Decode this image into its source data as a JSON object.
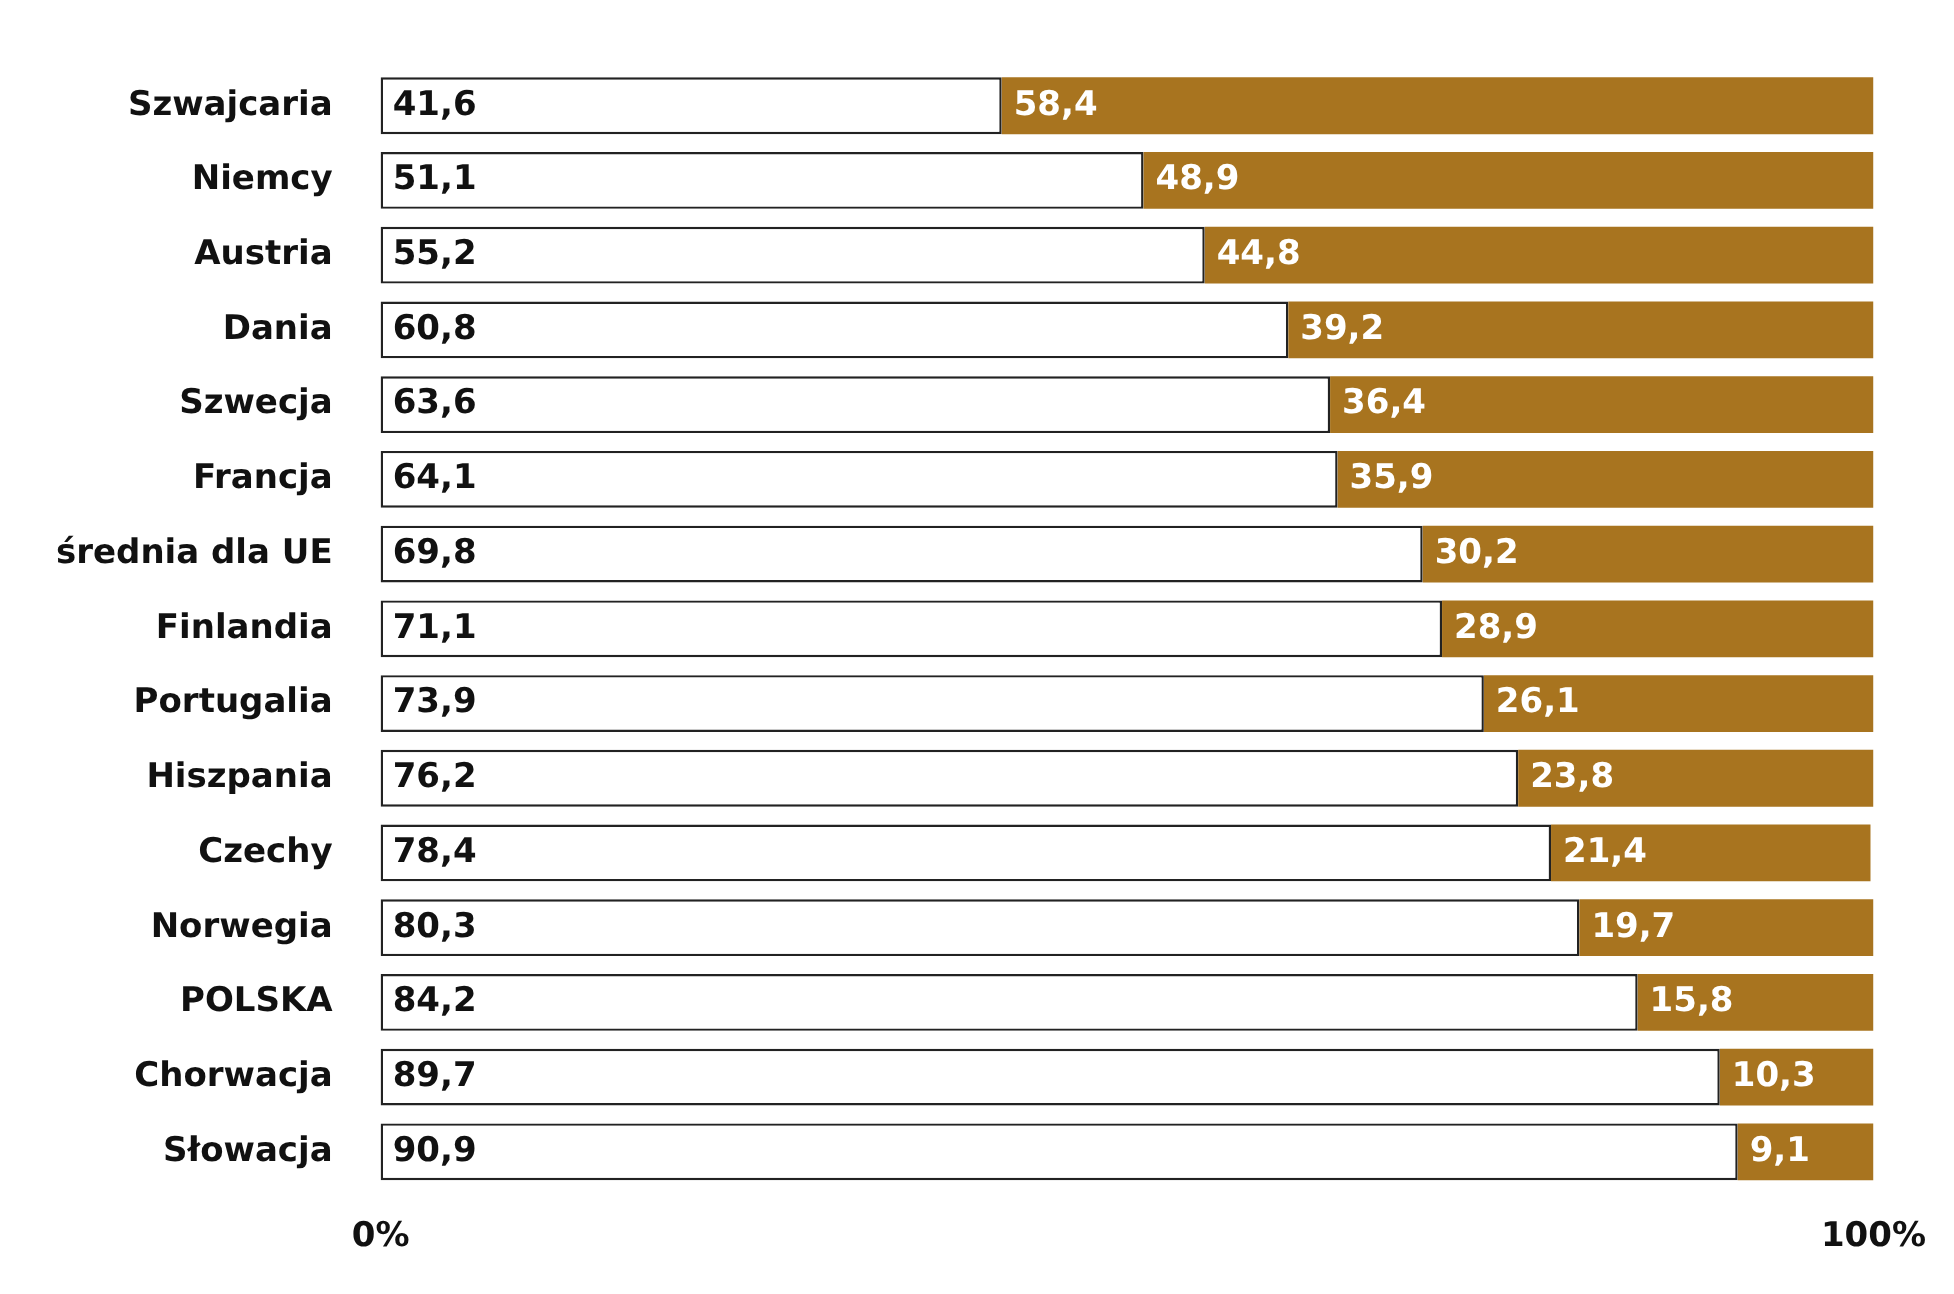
{
  "chart_data": {
    "type": "bar",
    "orientation": "horizontal",
    "stacked": true,
    "legend": false,
    "grid": false,
    "categories": [
      "Szwajcaria",
      "Niemcy",
      "Austria",
      "Dania",
      "Szwecja",
      "Francja",
      "średnia dla UE",
      "Finlandia",
      "Portugalia",
      "Hiszpania",
      "Czechy",
      "Norwegia",
      "POLSKA",
      "Chorwacja",
      "Słowacja"
    ],
    "xlim": [
      0,
      100
    ],
    "xticks": [
      {
        "value": 0,
        "label": "0%"
      },
      {
        "value": 100,
        "label": "100%"
      }
    ],
    "series": [
      {
        "color": "#ffffff",
        "values": [
          41.6,
          51.1,
          55.2,
          60.8,
          63.6,
          64.1,
          69.8,
          71.1,
          73.9,
          76.2,
          78.4,
          80.3,
          84.2,
          89.7,
          90.9
        ],
        "value_labels": [
          "41,6",
          "51,1",
          "55,2",
          "60,8",
          "63,6",
          "64,1",
          "69,8",
          "71,1",
          "73,9",
          "76,2",
          "78,4",
          "80,3",
          "84,2",
          "89,7",
          "90,9"
        ]
      },
      {
        "color": "#a8741f",
        "values": [
          58.4,
          48.9,
          44.8,
          39.2,
          36.4,
          35.9,
          30.2,
          28.9,
          26.1,
          23.8,
          21.4,
          19.7,
          15.8,
          10.3,
          9.1
        ],
        "value_labels": [
          "58,4",
          "48,9",
          "44,8",
          "39,2",
          "36,4",
          "35,9",
          "30,2",
          "28,9",
          "26,1",
          "23,8",
          "21,4",
          "19,7",
          "15,8",
          "10,3",
          "9,1"
        ]
      }
    ]
  }
}
